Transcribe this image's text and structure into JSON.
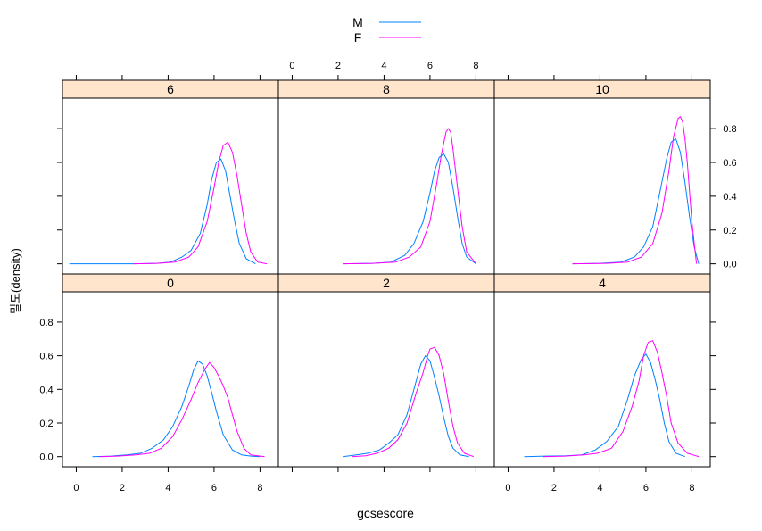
{
  "chart_data": {
    "type": "line",
    "xlabel": "gcsescore",
    "ylabel": "밀도(density)",
    "xlim": [
      -0.6,
      8.8
    ],
    "ylim": [
      -0.06,
      0.98
    ],
    "xticks": [
      0,
      2,
      4,
      6,
      8
    ],
    "yticks": [
      0.0,
      0.2,
      0.4,
      0.6,
      0.8
    ],
    "legend": {
      "position": "top",
      "entries": [
        {
          "name": "M",
          "color": "#0080ff"
        },
        {
          "name": "F",
          "color": "#ff00ff"
        }
      ]
    },
    "strip_color": "#ffe5cc",
    "panels": [
      {
        "label": "0",
        "series": [
          {
            "name": "M",
            "x": [
              0.7,
              1.5,
              2.2,
              2.8,
              3.3,
              3.8,
              4.2,
              4.6,
              4.9,
              5.1,
              5.3,
              5.5,
              5.7,
              5.9,
              6.1,
              6.4,
              6.8,
              7.2,
              7.6,
              8.0
            ],
            "y": [
              0.0,
              0.003,
              0.01,
              0.02,
              0.05,
              0.1,
              0.18,
              0.3,
              0.42,
              0.51,
              0.57,
              0.55,
              0.48,
              0.38,
              0.27,
              0.13,
              0.04,
              0.01,
              0.003,
              0.0
            ]
          },
          {
            "name": "F",
            "x": [
              1.0,
              1.8,
              2.6,
              3.2,
              3.7,
              4.2,
              4.6,
              5.0,
              5.3,
              5.6,
              5.8,
              6.0,
              6.2,
              6.4,
              6.6,
              6.8,
              7.0,
              7.3,
              7.6,
              8.2
            ],
            "y": [
              0.0,
              0.003,
              0.01,
              0.02,
              0.05,
              0.12,
              0.22,
              0.34,
              0.44,
              0.52,
              0.56,
              0.53,
              0.48,
              0.42,
              0.35,
              0.25,
              0.15,
              0.05,
              0.01,
              0.0
            ]
          }
        ]
      },
      {
        "label": "2",
        "series": [
          {
            "name": "M",
            "x": [
              2.2,
              2.8,
              3.3,
              3.8,
              4.2,
              4.6,
              5.0,
              5.3,
              5.6,
              5.8,
              6.0,
              6.2,
              6.4,
              6.6,
              6.8,
              7.0,
              7.3,
              7.7
            ],
            "y": [
              0.0,
              0.01,
              0.02,
              0.04,
              0.08,
              0.13,
              0.25,
              0.4,
              0.55,
              0.6,
              0.57,
              0.47,
              0.36,
              0.23,
              0.12,
              0.05,
              0.01,
              0.0
            ]
          },
          {
            "name": "F",
            "x": [
              2.6,
              3.2,
              3.7,
              4.2,
              4.6,
              5.0,
              5.4,
              5.7,
              5.9,
              6.0,
              6.2,
              6.4,
              6.6,
              6.8,
              7.0,
              7.2,
              7.5,
              7.9
            ],
            "y": [
              0.0,
              0.005,
              0.02,
              0.05,
              0.1,
              0.2,
              0.38,
              0.5,
              0.6,
              0.64,
              0.65,
              0.6,
              0.49,
              0.33,
              0.18,
              0.08,
              0.02,
              0.0
            ]
          }
        ]
      },
      {
        "label": "4",
        "series": [
          {
            "name": "M",
            "x": [
              0.7,
              1.6,
              2.5,
              3.2,
              3.8,
              4.3,
              4.8,
              5.2,
              5.5,
              5.8,
              6.0,
              6.2,
              6.4,
              6.6,
              6.8,
              7.0,
              7.3,
              7.7
            ],
            "y": [
              0.0,
              0.003,
              0.005,
              0.01,
              0.04,
              0.09,
              0.18,
              0.34,
              0.48,
              0.58,
              0.61,
              0.56,
              0.46,
              0.34,
              0.2,
              0.09,
              0.02,
              0.0
            ]
          },
          {
            "name": "F",
            "x": [
              1.5,
              2.5,
              3.3,
              3.9,
              4.5,
              5.0,
              5.4,
              5.7,
              5.9,
              6.1,
              6.3,
              6.5,
              6.7,
              6.9,
              7.1,
              7.4,
              7.8,
              8.3
            ],
            "y": [
              0.0,
              0.003,
              0.01,
              0.02,
              0.05,
              0.15,
              0.3,
              0.45,
              0.6,
              0.68,
              0.69,
              0.62,
              0.5,
              0.36,
              0.2,
              0.08,
              0.02,
              0.0
            ]
          }
        ]
      },
      {
        "label": "6",
        "series": [
          {
            "name": "M",
            "x": [
              -0.3,
              1.0,
              2.5,
              3.5,
              4.1,
              4.6,
              5.0,
              5.4,
              5.7,
              5.9,
              6.1,
              6.3,
              6.5,
              6.7,
              6.9,
              7.1,
              7.4,
              7.8
            ],
            "y": [
              0.0,
              0.0,
              0.0,
              0.003,
              0.01,
              0.04,
              0.08,
              0.18,
              0.35,
              0.5,
              0.6,
              0.62,
              0.55,
              0.4,
              0.25,
              0.12,
              0.03,
              0.0
            ]
          },
          {
            "name": "F",
            "x": [
              2.5,
              3.5,
              4.3,
              4.9,
              5.3,
              5.7,
              6.0,
              6.2,
              6.4,
              6.6,
              6.8,
              7.0,
              7.2,
              7.4,
              7.6,
              7.9,
              8.3
            ],
            "y": [
              0.0,
              0.003,
              0.01,
              0.04,
              0.1,
              0.25,
              0.45,
              0.6,
              0.7,
              0.72,
              0.66,
              0.52,
              0.35,
              0.18,
              0.07,
              0.01,
              0.0
            ]
          }
        ]
      },
      {
        "label": "8",
        "series": [
          {
            "name": "M",
            "x": [
              2.2,
              3.5,
              4.3,
              4.9,
              5.3,
              5.7,
              6.0,
              6.2,
              6.4,
              6.6,
              6.8,
              7.0,
              7.2,
              7.4,
              7.6,
              8.0
            ],
            "y": [
              0.0,
              0.003,
              0.01,
              0.05,
              0.12,
              0.25,
              0.42,
              0.55,
              0.63,
              0.65,
              0.6,
              0.45,
              0.28,
              0.12,
              0.04,
              0.0
            ]
          },
          {
            "name": "F",
            "x": [
              2.2,
              3.5,
              4.5,
              5.1,
              5.6,
              6.0,
              6.3,
              6.5,
              6.7,
              6.8,
              6.9,
              7.0,
              7.2,
              7.4,
              7.6,
              8.0
            ],
            "y": [
              0.0,
              0.003,
              0.01,
              0.04,
              0.1,
              0.25,
              0.48,
              0.65,
              0.78,
              0.8,
              0.78,
              0.68,
              0.45,
              0.22,
              0.07,
              0.0
            ]
          }
        ]
      },
      {
        "label": "10",
        "series": [
          {
            "name": "M",
            "x": [
              2.8,
              4.0,
              4.9,
              5.5,
              5.9,
              6.3,
              6.6,
              6.9,
              7.1,
              7.3,
              7.5,
              7.7,
              7.9,
              8.1,
              8.3
            ],
            "y": [
              0.0,
              0.003,
              0.01,
              0.04,
              0.1,
              0.22,
              0.42,
              0.62,
              0.72,
              0.74,
              0.66,
              0.48,
              0.28,
              0.1,
              0.0
            ]
          },
          {
            "name": "F",
            "x": [
              2.8,
              4.3,
              5.2,
              5.8,
              6.3,
              6.7,
              7.0,
              7.2,
              7.4,
              7.5,
              7.6,
              7.7,
              7.8,
              8.0,
              8.2
            ],
            "y": [
              0.0,
              0.003,
              0.01,
              0.04,
              0.12,
              0.3,
              0.55,
              0.75,
              0.86,
              0.87,
              0.84,
              0.74,
              0.6,
              0.25,
              0.0
            ]
          }
        ]
      }
    ]
  }
}
